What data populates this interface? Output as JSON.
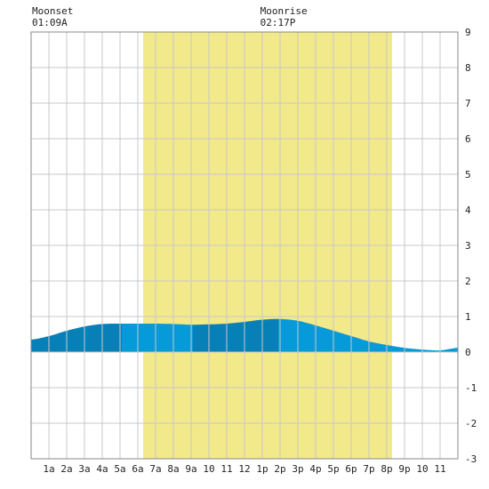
{
  "moon": {
    "set_label": "Moonset",
    "set_time": "01:09A",
    "set_hour": 1.15,
    "rise_label": "Moonrise",
    "rise_time": "02:17P",
    "rise_hour": 14.28
  },
  "chart_data": {
    "type": "area",
    "title": "",
    "xlabel": "",
    "ylabel": "",
    "xlim": [
      0,
      24
    ],
    "ylim": [
      -3,
      9
    ],
    "grid": true,
    "x_ticks": [
      {
        "x": 1,
        "label": "1a"
      },
      {
        "x": 2,
        "label": "2a"
      },
      {
        "x": 3,
        "label": "3a"
      },
      {
        "x": 4,
        "label": "4a"
      },
      {
        "x": 5,
        "label": "5a"
      },
      {
        "x": 6,
        "label": "6a"
      },
      {
        "x": 7,
        "label": "7a"
      },
      {
        "x": 8,
        "label": "8a"
      },
      {
        "x": 9,
        "label": "9a"
      },
      {
        "x": 10,
        "label": "10"
      },
      {
        "x": 11,
        "label": "11"
      },
      {
        "x": 12,
        "label": "12"
      },
      {
        "x": 13,
        "label": "1p"
      },
      {
        "x": 14,
        "label": "2p"
      },
      {
        "x": 15,
        "label": "3p"
      },
      {
        "x": 16,
        "label": "4p"
      },
      {
        "x": 17,
        "label": "5p"
      },
      {
        "x": 18,
        "label": "6p"
      },
      {
        "x": 19,
        "label": "7p"
      },
      {
        "x": 20,
        "label": "8p"
      },
      {
        "x": 21,
        "label": "9p"
      },
      {
        "x": 22,
        "label": "10"
      },
      {
        "x": 23,
        "label": "11"
      }
    ],
    "y_ticks": [
      -3,
      -2,
      -1,
      0,
      1,
      2,
      3,
      4,
      5,
      6,
      7,
      8,
      9
    ],
    "daylight": {
      "start": 6.3,
      "end": 20.3,
      "color": "#f2e98a"
    },
    "tide": {
      "x": [
        0,
        1,
        2,
        3,
        4,
        5,
        6,
        7,
        8,
        9,
        10,
        11,
        12,
        13,
        14,
        15,
        16,
        17,
        18,
        19,
        20,
        21,
        22,
        23,
        24
      ],
      "y": [
        0.35,
        0.45,
        0.6,
        0.72,
        0.79,
        0.8,
        0.8,
        0.8,
        0.79,
        0.77,
        0.78,
        0.8,
        0.85,
        0.91,
        0.93,
        0.88,
        0.75,
        0.6,
        0.45,
        0.3,
        0.2,
        0.12,
        0.07,
        0.05,
        0.12
      ],
      "band_edges": [
        0,
        5.1,
        9.1,
        13.9,
        24
      ],
      "band_colors": [
        "#0780b8",
        "#069ad8",
        "#0780b8",
        "#069ad8"
      ]
    }
  }
}
